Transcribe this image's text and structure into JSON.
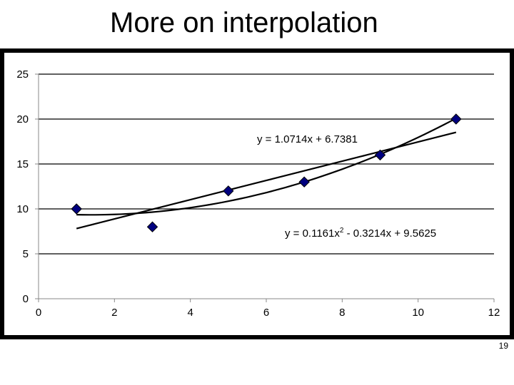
{
  "slide": {
    "title": "More on interpolation",
    "page_number": "19"
  },
  "chart_data": {
    "type": "scatter",
    "title": "",
    "xlabel": "",
    "ylabel": "",
    "xlim": [
      0,
      12
    ],
    "ylim": [
      0,
      25
    ],
    "xticks": [
      0,
      2,
      4,
      6,
      8,
      10,
      12
    ],
    "yticks": [
      0,
      5,
      10,
      15,
      20,
      25
    ],
    "grid": "horizontal",
    "marker": "diamond",
    "marker_color": "#00007f",
    "series": [
      {
        "x": [
          1,
          3,
          5,
          7,
          9,
          11
        ],
        "y": [
          10,
          8,
          12,
          13,
          16,
          20
        ]
      }
    ],
    "trendlines": [
      {
        "kind": "linear",
        "coefficients": [
          1.0714,
          6.7381
        ],
        "x_range": [
          1,
          11
        ],
        "equation": "y = 1.0714x + 6.7381"
      },
      {
        "kind": "quadratic",
        "coefficients": [
          0.1161,
          -0.3214,
          9.5625
        ],
        "x_range": [
          1,
          11
        ],
        "equation_main": "y = 0.1161x",
        "equation_sup": "2",
        "equation_rest": " - 0.3214x + 9.5625"
      }
    ]
  }
}
